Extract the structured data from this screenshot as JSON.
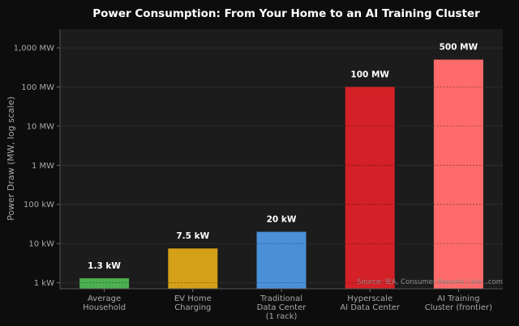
{
  "chart_data": {
    "type": "bar",
    "title": "Power Consumption: From Your Home to an AI Training Cluster",
    "xlabel": "",
    "ylabel": "Power Draw (MW, log scale)",
    "yscale": "log",
    "ylim": [
      0.0007,
      3000
    ],
    "y_ticks": [
      0.001,
      0.01,
      0.1,
      1,
      10,
      100,
      1000
    ],
    "y_tick_labels": [
      "1 kW",
      "10 kW",
      "100 kW",
      "1 MW",
      "10 MW",
      "100 MW",
      "1,000 MW"
    ],
    "categories": [
      [
        "Average",
        "Household"
      ],
      [
        "EV Home",
        "Charging"
      ],
      [
        "Traditional",
        "Data Center",
        "(1 rack)"
      ],
      [
        "Hyperscale",
        "AI Data Center"
      ],
      [
        "AI Training",
        "Cluster (frontier)"
      ]
    ],
    "values": [
      0.0013,
      0.0075,
      0.02,
      100,
      500
    ],
    "value_labels": [
      "1.3 kW",
      "7.5 kW",
      "20 kW",
      "100 MW",
      "500 MW"
    ],
    "colors": [
      "#4caf50",
      "#d4a017",
      "#4a90d9",
      "#d42027",
      "#ff6b6b"
    ],
    "grid": true,
    "source": "Source: IEA, Consumer Reports | bio...com"
  }
}
